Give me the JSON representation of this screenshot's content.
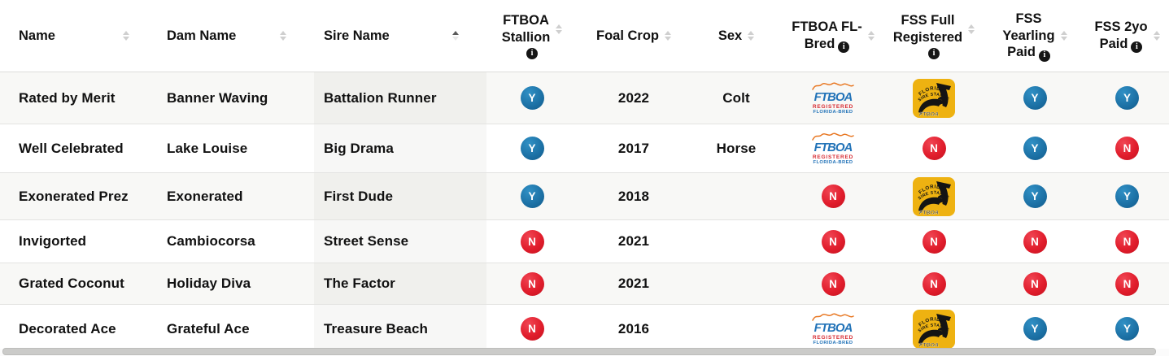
{
  "icons": {
    "info_glyph": "i"
  },
  "colors": {
    "yes_badge": "#1b6fa3",
    "no_badge": "#e11d2c",
    "fss_gold": "#eeb211",
    "ftboa_blue": "#2273b8",
    "ftboa_red": "#d7282f",
    "row_alt_bg": "#f8f8f6"
  },
  "table": {
    "columns": [
      {
        "label": "Name",
        "sort": "none",
        "info": false
      },
      {
        "label": "Dam Name",
        "sort": "none",
        "info": false
      },
      {
        "label": "Sire Name",
        "sort": "asc",
        "info": false
      },
      {
        "label": "FTBOA\nStallion",
        "sort": "none",
        "info": true
      },
      {
        "label": "Foal Crop",
        "sort": "none",
        "info": false
      },
      {
        "label": "Sex",
        "sort": "none",
        "info": false
      },
      {
        "label": "FTBOA FL-\nBred",
        "sort": "none",
        "info": true
      },
      {
        "label": "FSS Full\nRegistered",
        "sort": "none",
        "info": true
      },
      {
        "label": "FSS\nYearling\nPaid",
        "sort": "none",
        "info": true
      },
      {
        "label": "FSS 2yo\nPaid",
        "sort": "none",
        "info": true
      }
    ],
    "rows": [
      {
        "name": "Rated by Merit",
        "dam_name": "Banner Waving",
        "sire_name": "Battalion Runner",
        "ftboa_stallion": "Y",
        "foal_crop": "2022",
        "sex": "Colt",
        "ftboa_fl_bred": "ftboa-logo",
        "fss_full_registered": "fss-logo",
        "fss_yearling_paid": "Y",
        "fss_2yo_paid": "Y"
      },
      {
        "name": "Well Celebrated",
        "dam_name": "Lake Louise",
        "sire_name": "Big Drama",
        "ftboa_stallion": "Y",
        "foal_crop": "2017",
        "sex": "Horse",
        "ftboa_fl_bred": "ftboa-logo",
        "fss_full_registered": "N",
        "fss_yearling_paid": "Y",
        "fss_2yo_paid": "N"
      },
      {
        "name": "Exonerated Prez",
        "dam_name": "Exonerated",
        "sire_name": "First Dude",
        "ftboa_stallion": "Y",
        "foal_crop": "2018",
        "sex": "",
        "ftboa_fl_bred": "N",
        "fss_full_registered": "fss-logo",
        "fss_yearling_paid": "Y",
        "fss_2yo_paid": "Y"
      },
      {
        "name": "Invigorted",
        "dam_name": "Cambiocorsa",
        "sire_name": "Street Sense",
        "ftboa_stallion": "N",
        "foal_crop": "2021",
        "sex": "",
        "ftboa_fl_bred": "N",
        "fss_full_registered": "N",
        "fss_yearling_paid": "N",
        "fss_2yo_paid": "N"
      },
      {
        "name": "Grated Coconut",
        "dam_name": "Holiday Diva",
        "sire_name": "The Factor",
        "ftboa_stallion": "N",
        "foal_crop": "2021",
        "sex": "",
        "ftboa_fl_bred": "N",
        "fss_full_registered": "N",
        "fss_yearling_paid": "N",
        "fss_2yo_paid": "N"
      },
      {
        "name": "Decorated Ace",
        "dam_name": "Grateful Ace",
        "sire_name": "Treasure Beach",
        "ftboa_stallion": "N",
        "foal_crop": "2016",
        "sex": "",
        "ftboa_fl_bred": "ftboa-logo",
        "fss_full_registered": "fss-logo",
        "fss_yearling_paid": "Y",
        "fss_2yo_paid": "Y"
      }
    ]
  },
  "logos": {
    "ftboa": {
      "line1": "FTBOA",
      "line2": "REGISTERED",
      "line3": "FLORIDA-BRED"
    },
    "fss": {
      "arc1": "FLORIDA",
      "arc2": "SIRE STAKES",
      "bottom": "FTBOA"
    }
  }
}
